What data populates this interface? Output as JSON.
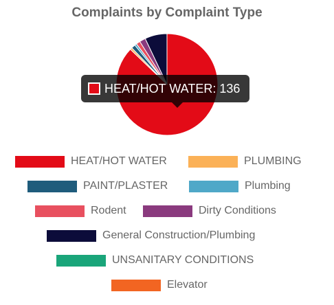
{
  "chart_data": {
    "type": "pie",
    "title": "Complaints by Complaint Type",
    "slices": [
      {
        "label": "HEAT/HOT WATER",
        "value": 136,
        "color": "#e30b17"
      },
      {
        "label": "PLUMBING",
        "value": 1,
        "color": "#fbb157"
      },
      {
        "label": "PAINT/PLASTER",
        "value": 2,
        "color": "#1f5c7c"
      },
      {
        "label": "Plumbing",
        "value": 1,
        "color": "#4fa8c8"
      },
      {
        "label": "Rodent",
        "value": 2,
        "color": "#e8505f"
      },
      {
        "label": "Dirty Conditions",
        "value": 3,
        "color": "#8a3a7e"
      },
      {
        "label": "General Construction/Plumbing",
        "value": 11,
        "color": "#0c0c3a"
      },
      {
        "label": "UNSANITARY CONDITIONS",
        "value": 0,
        "color": "#1aa57a"
      },
      {
        "label": "Elevator",
        "value": 0,
        "color": "#f26522"
      }
    ],
    "legend_position": "bottom",
    "tooltip": {
      "label": "HEAT/HOT WATER",
      "value": 136,
      "text": "HEAT/HOT WATER: 136"
    }
  }
}
